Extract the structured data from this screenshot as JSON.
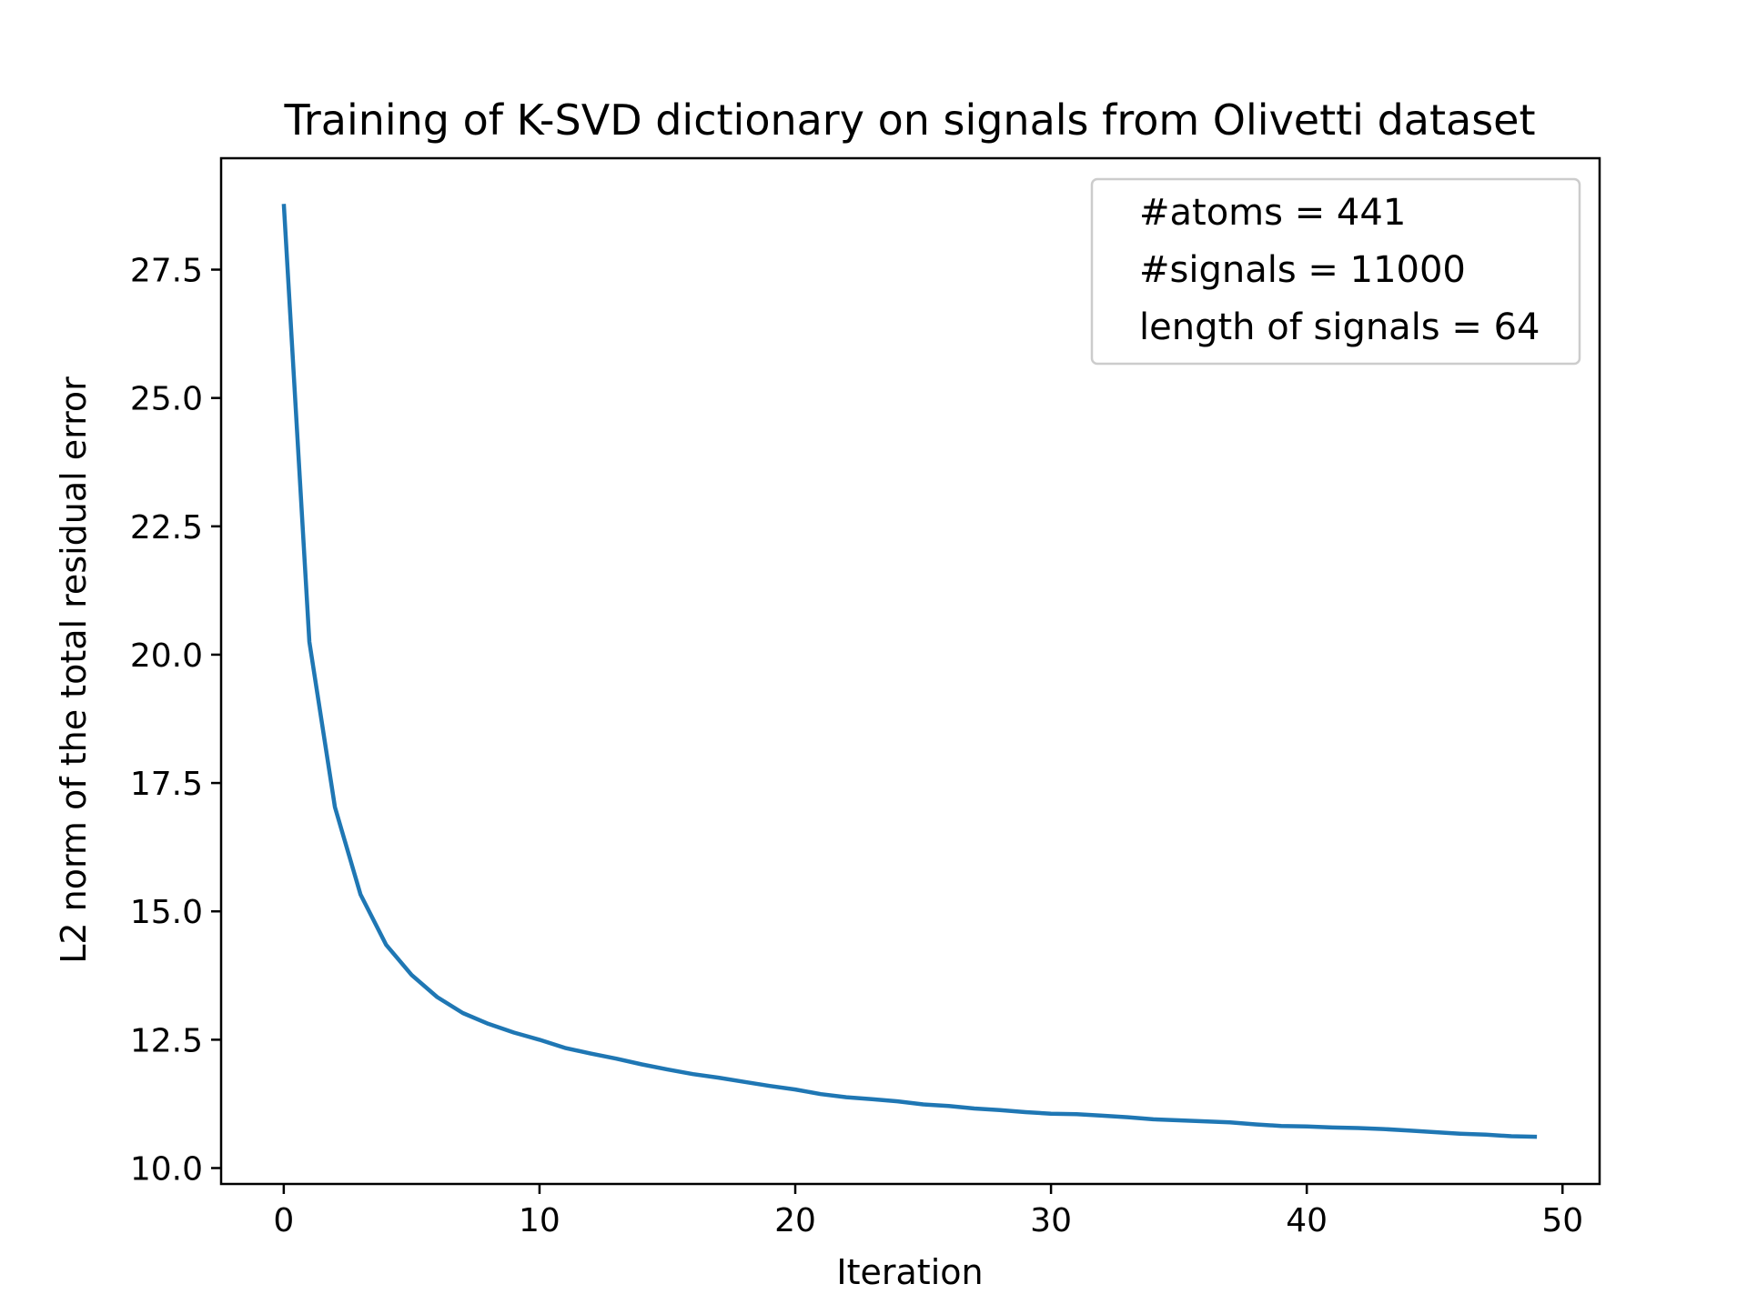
{
  "chart_data": {
    "type": "line",
    "title": "Training of K-SVD dictionary on signals from Olivetti dataset",
    "xlabel": "Iteration",
    "ylabel": "L2 norm of the total residual error",
    "xlim": [
      -2.45,
      51.45
    ],
    "ylim": [
      9.69,
      29.67
    ],
    "xticks": [
      "0",
      "10",
      "20",
      "30",
      "40",
      "50"
    ],
    "yticks": [
      "10.0",
      "12.5",
      "15.0",
      "17.5",
      "20.0",
      "22.5",
      "25.0",
      "27.5"
    ],
    "grid": false,
    "legend_position": "top-right",
    "legend_entries": [
      "#atoms = 441",
      "#signals = 11000",
      "length of signals = 64"
    ],
    "line_color": "#1f77b4",
    "x": [
      0,
      1,
      2,
      3,
      4,
      5,
      6,
      7,
      8,
      9,
      10,
      11,
      12,
      13,
      14,
      15,
      16,
      17,
      18,
      19,
      20,
      21,
      22,
      23,
      24,
      25,
      26,
      27,
      28,
      29,
      30,
      31,
      32,
      33,
      34,
      35,
      36,
      37,
      38,
      39,
      40,
      41,
      42,
      43,
      44,
      45,
      46,
      47,
      48,
      49
    ],
    "series": [
      {
        "values": [
          28.78,
          20.25,
          17.03,
          15.33,
          14.35,
          13.76,
          13.33,
          13.02,
          12.81,
          12.64,
          12.5,
          12.34,
          12.23,
          12.13,
          12.02,
          11.92,
          11.83,
          11.76,
          11.68,
          11.6,
          11.53,
          11.44,
          11.38,
          11.34,
          11.3,
          11.24,
          11.21,
          11.16,
          11.13,
          11.09,
          11.06,
          11.05,
          11.02,
          10.99,
          10.95,
          10.93,
          10.91,
          10.89,
          10.85,
          10.82,
          10.81,
          10.79,
          10.78,
          10.76,
          10.73,
          10.7,
          10.67,
          10.65,
          10.62,
          10.61
        ]
      }
    ]
  }
}
